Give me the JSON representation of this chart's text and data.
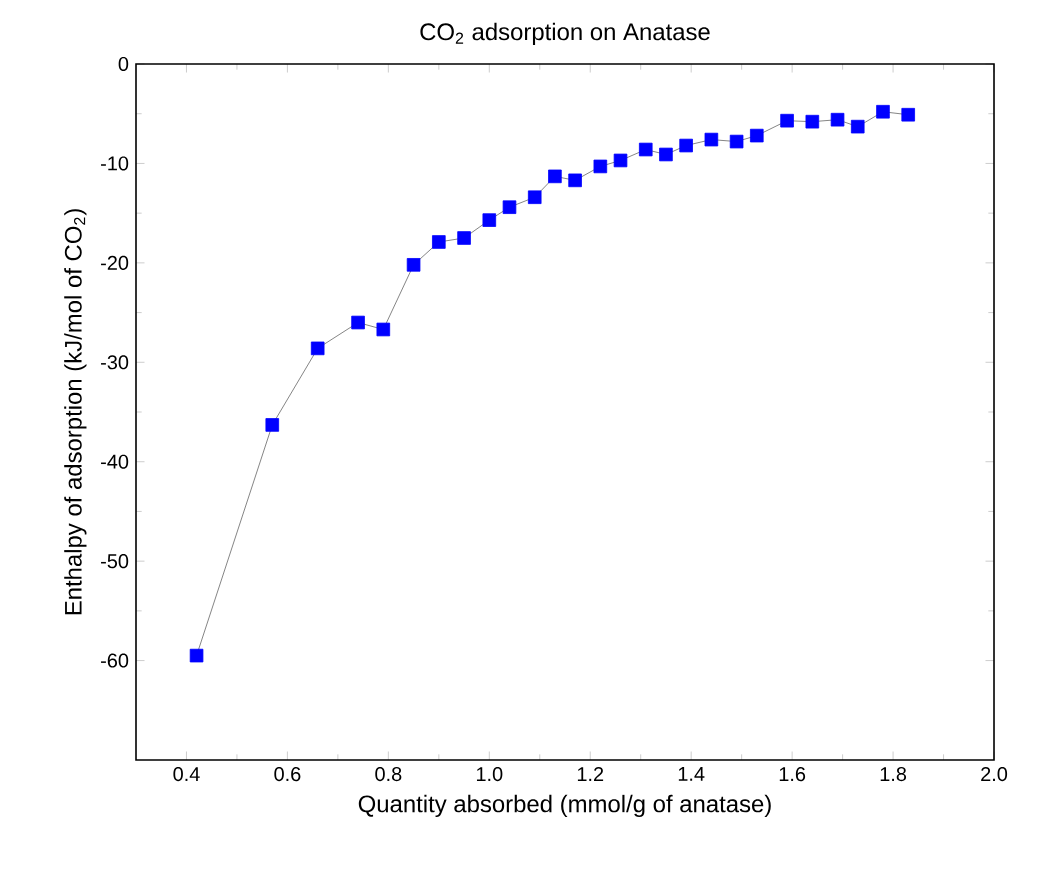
{
  "chart_data": {
    "type": "line",
    "title": "CO$_{2}$ adsorption on Anatase",
    "xlabel": "Quantity absorbed (mmol/g of anatase)",
    "ylabel": "Enthalpy of adsorption (kJ/mol of CO$_{2}$)",
    "x": [
      0.42,
      0.57,
      0.66,
      0.74,
      0.79,
      0.85,
      0.9,
      0.95,
      1.0,
      1.04,
      1.09,
      1.13,
      1.17,
      1.22,
      1.26,
      1.31,
      1.35,
      1.39,
      1.44,
      1.49,
      1.53,
      1.59,
      1.64,
      1.69,
      1.73,
      1.78,
      1.83
    ],
    "series": [
      {
        "color": "#0000ff",
        "values": [
          -59.5,
          -36.3,
          -28.6,
          -26.0,
          -26.7,
          -20.2,
          -17.9,
          -17.5,
          -15.7,
          -14.4,
          -13.4,
          -11.3,
          -11.7,
          -10.3,
          -9.7,
          -8.6,
          -9.1,
          -8.2,
          -7.6,
          -7.8,
          -7.2,
          -5.7,
          -5.8,
          -5.6,
          -6.3,
          -4.8,
          -5.1
        ]
      }
    ],
    "marker": "square",
    "line_style": "solid",
    "xlim": [
      0.3,
      2.0
    ],
    "ylim": [
      -70,
      0
    ],
    "xticks": [
      0.4,
      0.6,
      0.8,
      {
        "value": 1,
        "label": "1.0"
      },
      1.2,
      1.4,
      1.6,
      1.8,
      {
        "value": 2,
        "label": "2.0"
      }
    ],
    "yticks": [
      -60,
      -50,
      -40,
      -30,
      -20,
      -10,
      0
    ]
  }
}
